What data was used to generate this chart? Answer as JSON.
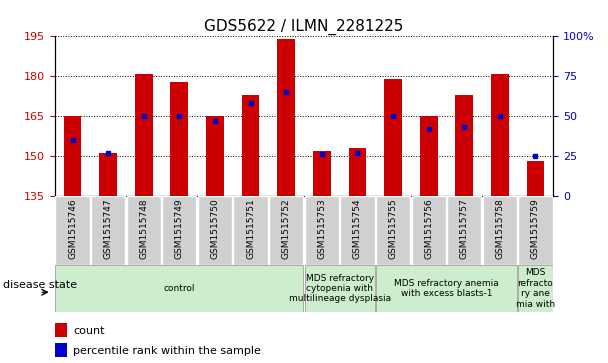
{
  "title": "GDS5622 / ILMN_2281225",
  "samples": [
    "GSM1515746",
    "GSM1515747",
    "GSM1515748",
    "GSM1515749",
    "GSM1515750",
    "GSM1515751",
    "GSM1515752",
    "GSM1515753",
    "GSM1515754",
    "GSM1515755",
    "GSM1515756",
    "GSM1515757",
    "GSM1515758",
    "GSM1515759"
  ],
  "counts": [
    165,
    151,
    181,
    178,
    165,
    173,
    194,
    152,
    153,
    179,
    165,
    173,
    181,
    148
  ],
  "percentile_ranks": [
    35,
    27,
    50,
    50,
    47,
    58,
    65,
    26,
    27,
    50,
    42,
    43,
    50,
    25
  ],
  "ylim_left": [
    135,
    195
  ],
  "ylim_right": [
    0,
    100
  ],
  "yticks_left": [
    135,
    150,
    165,
    180,
    195
  ],
  "yticks_right": [
    0,
    25,
    50,
    75,
    100
  ],
  "bar_color": "#cc0000",
  "dot_color": "#0000cc",
  "bar_width": 0.5,
  "disease_groups": [
    {
      "label": "control",
      "start": 0,
      "end": 7
    },
    {
      "label": "MDS refractory\ncytopenia with\nmultilineage dysplasia",
      "start": 7,
      "end": 9
    },
    {
      "label": "MDS refractory anemia\nwith excess blasts-1",
      "start": 9,
      "end": 13
    },
    {
      "label": "MDS\nrefracto\nry ane\nmia with",
      "start": 13,
      "end": 14
    }
  ],
  "disease_state_label": "disease state",
  "legend_count_label": "count",
  "legend_percentile_label": "percentile rank within the sample",
  "tick_color_left": "#cc0000",
  "tick_color_right": "#0000cc",
  "bg_color": "#ffffff",
  "plot_bg_color": "#ffffff",
  "label_box_color": "#d0d0d0",
  "disease_box_color": "#cceecc",
  "disease_box_edge": "#aaaaaa"
}
